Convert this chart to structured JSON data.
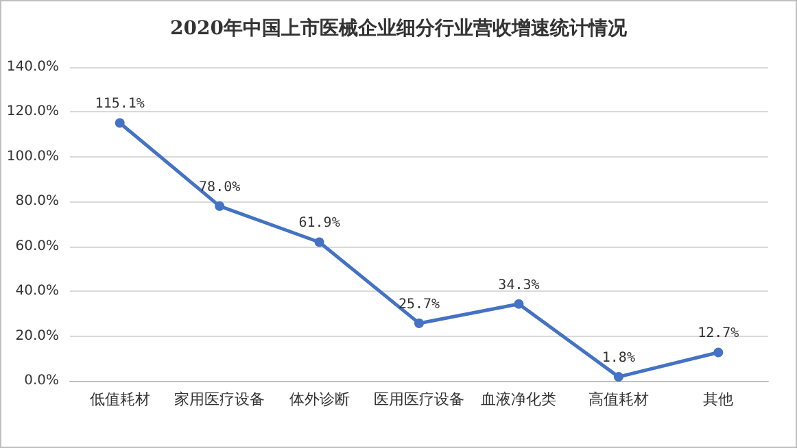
{
  "chart_data": {
    "type": "line",
    "title": "2020年中国上市医械企业细分行业营收增速统计情况",
    "categories": [
      "低值耗材",
      "家用医疗设备",
      "体外诊断",
      "医用医疗设备",
      "血液净化类",
      "高值耗材",
      "其他"
    ],
    "series": [
      {
        "color": "#4472c4",
        "values": [
          115.1,
          78.0,
          61.9,
          25.7,
          34.3,
          1.8,
          12.7
        ],
        "value_labels": [
          "115.1%",
          "78.0%",
          "61.9%",
          "25.7%",
          "34.3%",
          "1.8%",
          "12.7%"
        ]
      }
    ],
    "ylim": [
      0,
      140
    ],
    "yticks": [
      {
        "value": 0,
        "label": "0.0%"
      },
      {
        "value": 20,
        "label": "20.0%"
      },
      {
        "value": 40,
        "label": "40.0%"
      },
      {
        "value": 60,
        "label": "60.0%"
      },
      {
        "value": 80,
        "label": "80.0%"
      },
      {
        "value": 100,
        "label": "100.0%"
      },
      {
        "value": 120,
        "label": "120.0%"
      },
      {
        "value": 140,
        "label": "140.0%"
      }
    ],
    "grid": "y",
    "marker": "circle",
    "line_style": "solid"
  }
}
